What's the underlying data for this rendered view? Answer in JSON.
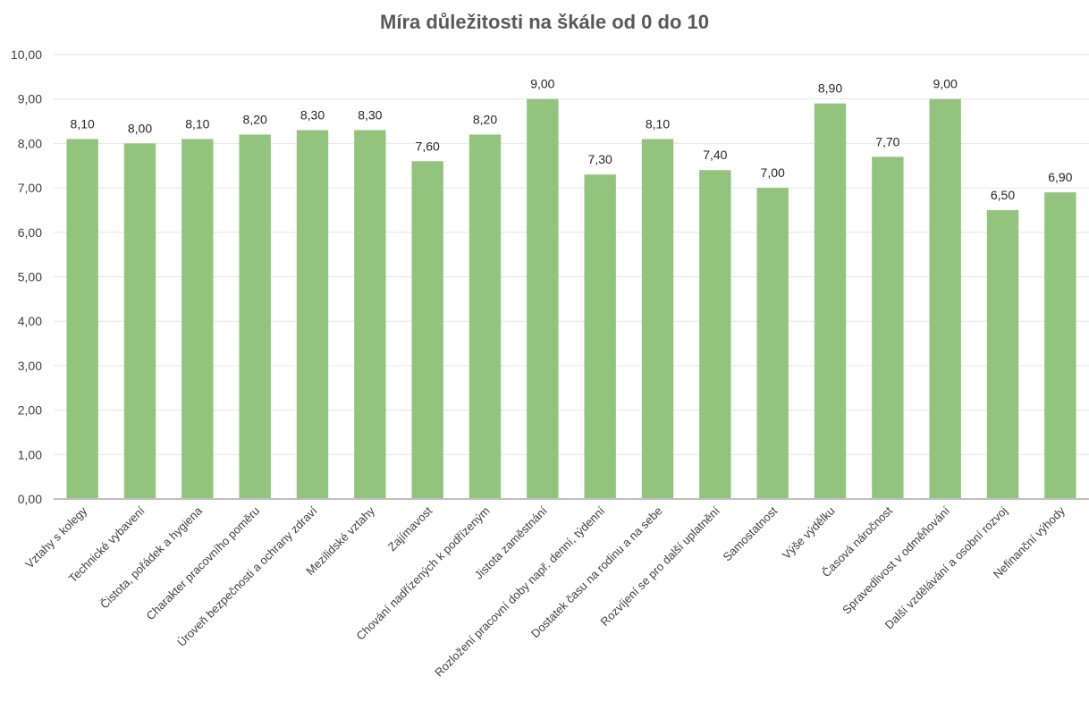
{
  "chart_data": {
    "type": "bar",
    "title": "Míra důležitosti na škále od 0 do 10",
    "xlabel": "",
    "ylabel": "",
    "ylim": [
      0,
      10
    ],
    "yticks": [
      "0,00",
      "1,00",
      "2,00",
      "3,00",
      "4,00",
      "5,00",
      "6,00",
      "7,00",
      "8,00",
      "9,00",
      "10,00"
    ],
    "grid": true,
    "legend": "none",
    "bar_color": "#93c47d",
    "categories": [
      "Vztahy s kolegy",
      "Technické vybavení",
      "Čistota, pořádek a hygiena",
      "Charakter pracovního poměru",
      "Úroveň bezpečnosti a ochrany zdraví",
      "Mezilidské vztahy",
      "Zajímavost",
      "Chování nadřízených k podřízeným",
      "Jistota zaměstnání",
      "Rozložení pracovní doby např. denní, týdenní",
      "Dostatek času na rodinu a na sebe",
      "Rozvíjení se pro další uplatnění",
      "Samostatnost",
      "Výše výdělku",
      "Časová náročnost",
      "Spravedlivost v odměňování",
      "Další vzdělávání a osobní rozvoj",
      "Nefinanční výhody"
    ],
    "values": [
      8.1,
      8.0,
      8.1,
      8.2,
      8.3,
      8.3,
      7.6,
      8.2,
      9.0,
      7.3,
      8.1,
      7.4,
      7.0,
      8.9,
      7.7,
      9.0,
      6.5,
      6.9
    ],
    "data_labels": [
      "8,10",
      "8,00",
      "8,10",
      "8,20",
      "8,30",
      "8,30",
      "7,60",
      "8,20",
      "9,00",
      "7,30",
      "8,10",
      "7,40",
      "7,00",
      "8,90",
      "7,70",
      "9,00",
      "6,50",
      "6,90"
    ]
  }
}
